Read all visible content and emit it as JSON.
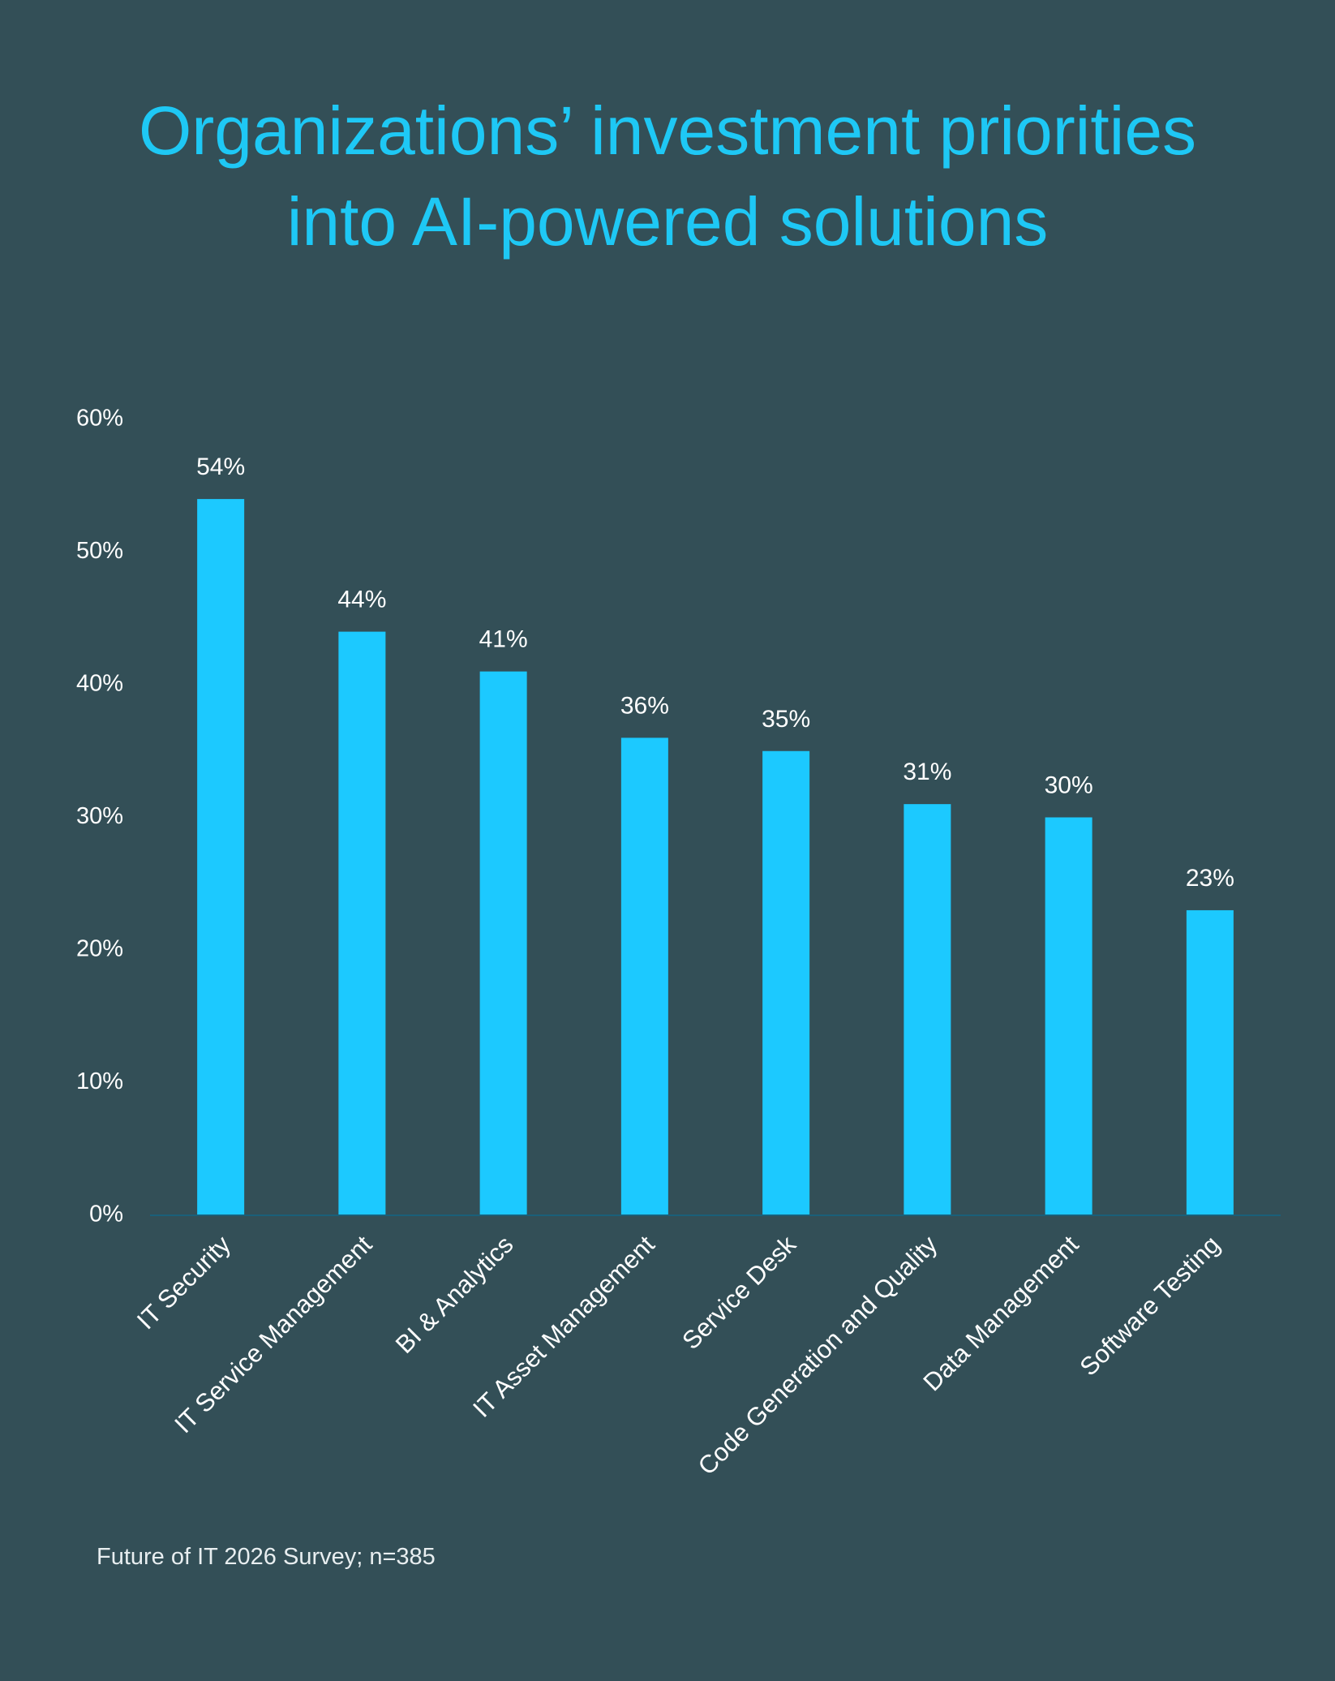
{
  "chart_data": {
    "type": "bar",
    "title": [
      "Organizations’ investment priorities",
      "into AI-powered solutions"
    ],
    "categories": [
      "IT Security",
      "IT Service Management",
      "BI & Analytics",
      "IT Asset Management",
      "Service Desk",
      "Code Generation and Quality",
      "Data Management",
      "Software Testing"
    ],
    "values": [
      54,
      44,
      41,
      36,
      35,
      31,
      30,
      23
    ],
    "value_labels": [
      "54%",
      "44%",
      "41%",
      "36%",
      "35%",
      "31%",
      "30%",
      "23%"
    ],
    "color": "#1cc9ff",
    "ylim": [
      0,
      60
    ],
    "yticks": [
      {
        "value": 0,
        "label": "0%"
      },
      {
        "value": 10,
        "label": "10%"
      },
      {
        "value": 20,
        "label": "20%"
      },
      {
        "value": 30,
        "label": "30%"
      },
      {
        "value": 40,
        "label": "40%"
      },
      {
        "value": 50,
        "label": "50%"
      },
      {
        "value": 60,
        "label": "60%"
      }
    ],
    "grid": false,
    "source": "Future of IT 2026 Survey; n=385"
  }
}
